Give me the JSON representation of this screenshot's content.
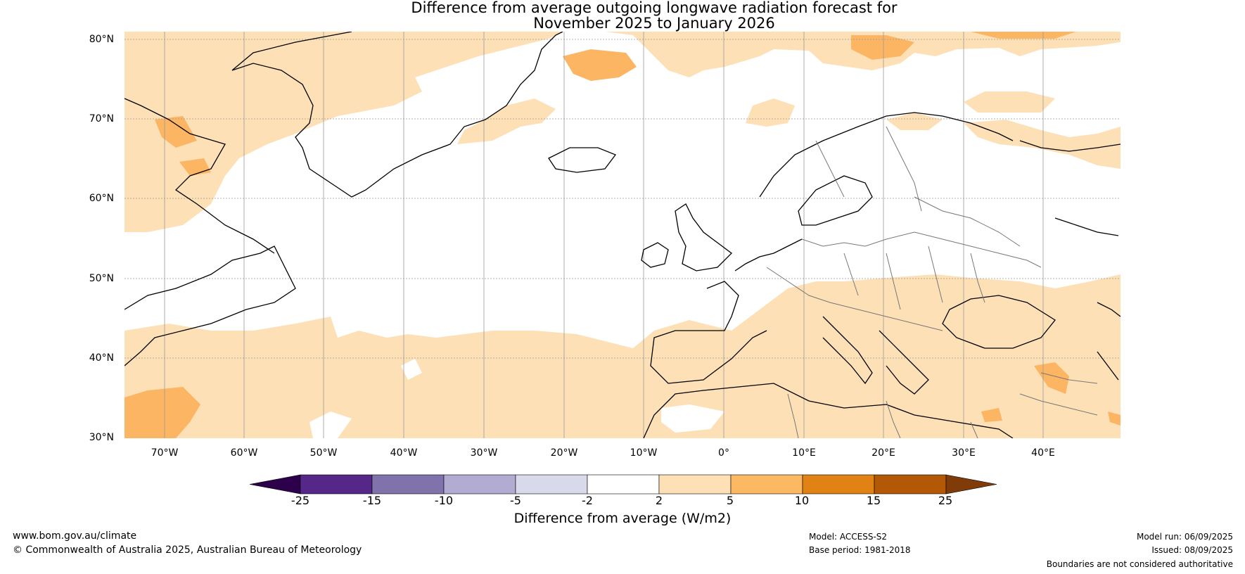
{
  "title": {
    "line1": "Difference from average outgoing longwave radiation forecast for",
    "line2": "November 2025 to January 2026"
  },
  "map": {
    "lat_labels": [
      "80°N",
      "70°N",
      "60°N",
      "50°N",
      "40°N",
      "30°N"
    ],
    "lon_labels": [
      "70°W",
      "60°W",
      "50°W",
      "40°W",
      "30°W",
      "20°W",
      "10°W",
      "0°",
      "10°E",
      "20°E",
      "30°E",
      "40°E"
    ],
    "colors": {
      "positive_2_5": "#fde0b6",
      "positive_5_10": "#fcb562",
      "coastline": "#000000",
      "borders": "#777777",
      "gridlines": "#999999"
    }
  },
  "colorbar": {
    "ticks": [
      "-25",
      "-15",
      "-10",
      "-5",
      "-2",
      "2",
      "5",
      "10",
      "15",
      "25"
    ],
    "colors": [
      "#2d004b",
      "#542788",
      "#8073ac",
      "#b2abd2",
      "#d8daeb",
      "#ffffff",
      "#fee0b6",
      "#fdb863",
      "#e08214",
      "#b35806",
      "#7f3b08"
    ],
    "label": "Difference from average (W/m2)"
  },
  "footer": {
    "website": "www.bom.gov.au/climate",
    "copyright": "© Commonwealth of Australia 2025, Australian Bureau of Meteorology",
    "model": "Model: ACCESS-S2",
    "base_period": "Base period: 1981-2018",
    "model_run": "Model run: 06/09/2025",
    "issued": "Issued: 08/09/2025",
    "disclaimer": "Boundaries are not considered authoritative"
  }
}
